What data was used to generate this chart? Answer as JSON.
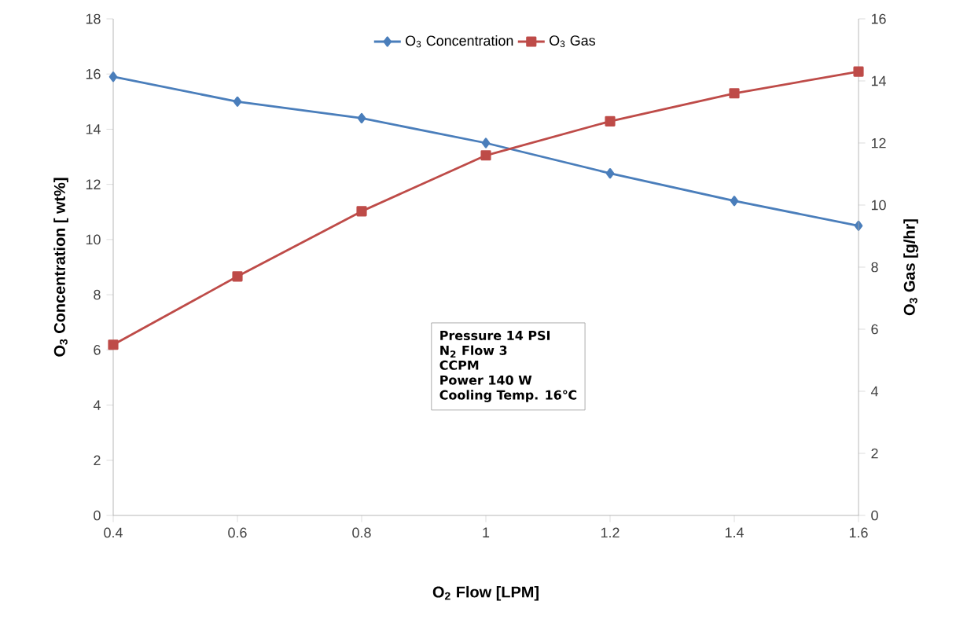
{
  "chart_data": {
    "type": "line",
    "xlabel": "O$_{2}$ Flow [LPM]",
    "ylabel": "O$_{3}$ Concentration [ wt%]",
    "y2label": "O$_{3}$ Gas [g/hr]",
    "x": [
      0.4,
      0.6,
      0.8,
      1.0,
      1.2,
      1.4,
      1.6
    ],
    "series": [
      {
        "name": "O$_{3}$ Concentration",
        "color": "#4a7ebb",
        "marker": "diamond",
        "values": [
          15.9,
          15.0,
          14.4,
          13.5,
          12.4,
          11.4,
          10.5
        ]
      },
      {
        "name": "O$_{3}$ Gas",
        "color": "#be4b48",
        "marker": "square",
        "axis": "y2",
        "values": [
          5.5,
          7.7,
          9.8,
          11.6,
          12.7,
          13.6,
          14.3
        ]
      }
    ],
    "xlim": [
      0.4,
      1.6
    ],
    "xticks": [
      0.4,
      0.6,
      0.8,
      {
        "value": 1.0,
        "label": "1"
      },
      1.2,
      1.4,
      1.6
    ],
    "ylim": [
      0,
      18
    ],
    "yticks": [
      0,
      2,
      4,
      6,
      8,
      10,
      12,
      14,
      16,
      18
    ],
    "y2lim": [
      0,
      16
    ],
    "y2ticks": [
      0,
      2,
      4,
      6,
      8,
      10,
      12,
      14,
      16
    ],
    "legend": "top",
    "annotations": [
      "Pressure 14 PSI",
      "N$_{2}$ Flow 3",
      "CCPM",
      "Power 140 W",
      "Cooling Temp. 16℃"
    ]
  }
}
